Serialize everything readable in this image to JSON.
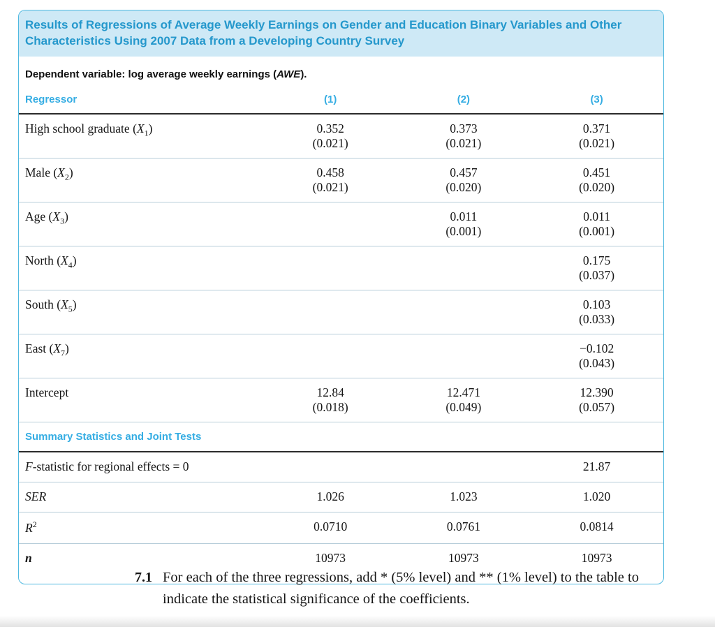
{
  "panel": {
    "title": "Results of Regressions of Average Weekly Earnings on Gender and Education Binary Variables and Other Characteristics Using 2007 Data from a Developing Country Survey",
    "dependent_note": {
      "prefix": "Dependent variable: log average weekly earnings (",
      "var": "AWE",
      "suffix": ")."
    },
    "header": {
      "regressor": "Regressor",
      "columns": [
        "(1)",
        "(2)",
        "(3)"
      ]
    },
    "rows": [
      {
        "label": {
          "text": "High school graduate",
          "var": "X",
          "sub": "1"
        },
        "values": [
          {
            "coef": "0.352",
            "se": "(0.021)"
          },
          {
            "coef": "0.373",
            "se": "(0.021)"
          },
          {
            "coef": "0.371",
            "se": "(0.021)"
          }
        ]
      },
      {
        "label": {
          "text": "Male",
          "var": "X",
          "sub": "2"
        },
        "values": [
          {
            "coef": "0.458",
            "se": "(0.021)"
          },
          {
            "coef": "0.457",
            "se": "(0.020)"
          },
          {
            "coef": "0.451",
            "se": "(0.020)"
          }
        ]
      },
      {
        "label": {
          "text": "Age",
          "var": "X",
          "sub": "3"
        },
        "values": [
          null,
          {
            "coef": "0.011",
            "se": "(0.001)"
          },
          {
            "coef": "0.011",
            "se": "(0.001)"
          }
        ]
      },
      {
        "label": {
          "text": "North",
          "var": "X",
          "sub": "4"
        },
        "values": [
          null,
          null,
          {
            "coef": "0.175",
            "se": "(0.037)"
          }
        ]
      },
      {
        "label": {
          "text": "South",
          "var": "X",
          "sub": "5"
        },
        "values": [
          null,
          null,
          {
            "coef": "0.103",
            "se": "(0.033)"
          }
        ]
      },
      {
        "label": {
          "text": "East",
          "var": "X",
          "sub": "7"
        },
        "values": [
          null,
          null,
          {
            "coef": "−0.102",
            "se": "(0.043)"
          }
        ]
      },
      {
        "label": {
          "text": "Intercept",
          "var": "",
          "sub": ""
        },
        "values": [
          {
            "coef": "12.84",
            "se": "(0.018)"
          },
          {
            "coef": "12.471",
            "se": "(0.049)"
          },
          {
            "coef": "12.390",
            "se": "(0.057)"
          }
        ]
      }
    ],
    "summary_heading": "Summary Statistics and Joint Tests",
    "summary_rows": [
      {
        "label": {
          "italic": "F",
          "text": "-statistic for regional effects = 0",
          "sup": "",
          "bold": false
        },
        "values": [
          "",
          "",
          "21.87"
        ]
      },
      {
        "label": {
          "italic": "SER",
          "text": "",
          "sup": "",
          "bold": false
        },
        "values": [
          "1.026",
          "1.023",
          "1.020"
        ]
      },
      {
        "label": {
          "italic": "R",
          "text": "",
          "sup": "2",
          "bold": false
        },
        "values": [
          "0.0710",
          "0.0761",
          "0.0814"
        ]
      },
      {
        "label": {
          "italic": "n",
          "text": "",
          "sup": "",
          "bold": true
        },
        "values": [
          "10973",
          "10973",
          "10973"
        ]
      }
    ]
  },
  "exercise": {
    "number": "7.1",
    "text": "For each of the three regressions, add * (5% level) and ** (1% level) to the table to indicate the statistical significance of the coefficients."
  },
  "colors": {
    "header_cyan": "#35ADE3",
    "title_blue": "#2598CC",
    "panel_border": "#4FB9E0",
    "title_bg": "#CEE9F6",
    "divider_dark": "#2B2B2B",
    "divider_light": "#B7CDD9"
  }
}
